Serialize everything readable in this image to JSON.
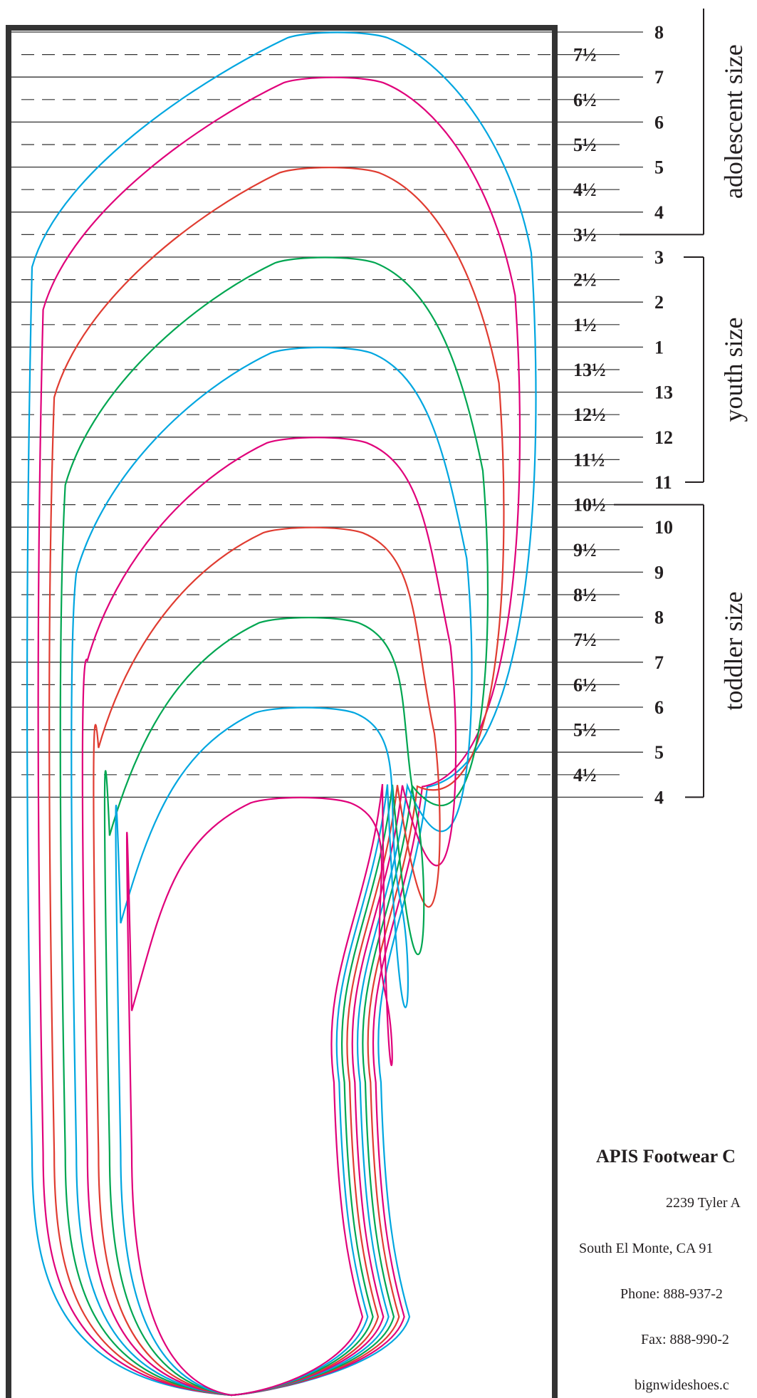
{
  "chart_data": {
    "type": "diagram",
    "title": "",
    "rulings": [
      {
        "size": "8",
        "type": "full"
      },
      {
        "size": "7½",
        "type": "half"
      },
      {
        "size": "7",
        "type": "full"
      },
      {
        "size": "6½",
        "type": "half"
      },
      {
        "size": "6",
        "type": "full"
      },
      {
        "size": "5½",
        "type": "half"
      },
      {
        "size": "5",
        "type": "full"
      },
      {
        "size": "4½",
        "type": "half"
      },
      {
        "size": "4",
        "type": "full"
      },
      {
        "size": "3½",
        "type": "half"
      },
      {
        "size": "3",
        "type": "full"
      },
      {
        "size": "2½",
        "type": "half"
      },
      {
        "size": "2",
        "type": "full"
      },
      {
        "size": "1½",
        "type": "half"
      },
      {
        "size": "1",
        "type": "full"
      },
      {
        "size": "13½",
        "type": "half"
      },
      {
        "size": "13",
        "type": "full"
      },
      {
        "size": "12½",
        "type": "half"
      },
      {
        "size": "12",
        "type": "full"
      },
      {
        "size": "11½",
        "type": "half"
      },
      {
        "size": "11",
        "type": "full"
      },
      {
        "size": "10½",
        "type": "half"
      },
      {
        "size": "10",
        "type": "full"
      },
      {
        "size": "9½",
        "type": "half"
      },
      {
        "size": "9",
        "type": "full"
      },
      {
        "size": "8½",
        "type": "half"
      },
      {
        "size": "8",
        "type": "full"
      },
      {
        "size": "7½",
        "type": "half"
      },
      {
        "size": "7",
        "type": "full"
      },
      {
        "size": "6½",
        "type": "half"
      },
      {
        "size": "6",
        "type": "full"
      },
      {
        "size": "5½",
        "type": "half"
      },
      {
        "size": "5",
        "type": "full"
      },
      {
        "size": "4½",
        "type": "half"
      },
      {
        "size": "4",
        "type": "full"
      }
    ],
    "groups": [
      {
        "label": "adolescent size",
        "from_size": "8",
        "to_size": "3½"
      },
      {
        "label": "youth size",
        "from_size": "3",
        "to_size": "11"
      },
      {
        "label": "toddler size",
        "from_size": "10½",
        "to_size": "4"
      }
    ],
    "outline_colors": [
      "#00a6e0",
      "#e0007a",
      "#e03c31",
      "#00a651"
    ],
    "outlines_from_largest": [
      "8",
      "7",
      "5",
      "3",
      "1",
      "12",
      "10",
      "8",
      "6",
      "4"
    ]
  },
  "company": {
    "name": "APIS Footwear C",
    "address": "2239 Tyler A",
    "city": "South El Monte, CA 91",
    "phone": "Phone: 888-937-2",
    "fax": "Fax: 888-990-2",
    "website": "bignwideshoes.c"
  },
  "colors": {
    "frame": "#333333",
    "ink": "#231f20"
  }
}
